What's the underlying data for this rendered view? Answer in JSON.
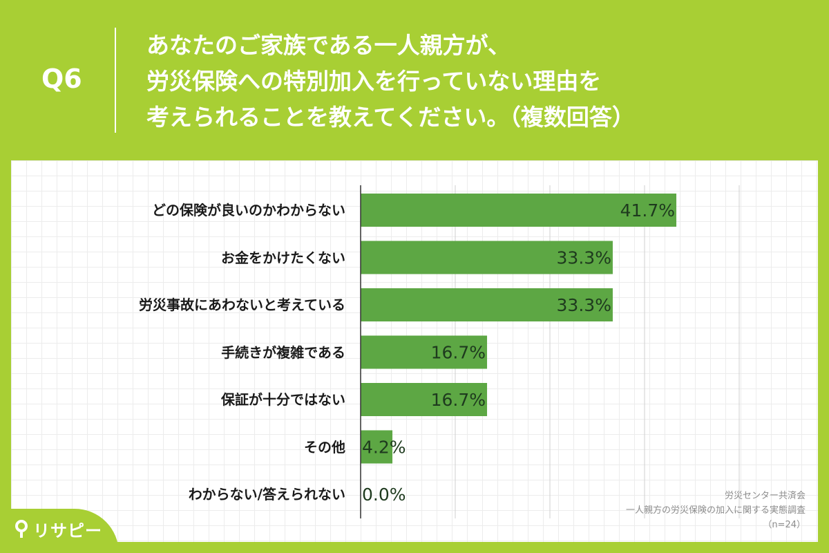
{
  "question": {
    "label": "Q6",
    "lines": [
      "あなたのご家族である一人親方が、",
      "労災保険への特別加入を行っていない理由を",
      "考えられることを教えてください。（複数回答）"
    ]
  },
  "source": {
    "org": "労災センター共済会",
    "survey": "一人親方の労災保険の加入に関する実態調査",
    "sample": "（n=24）"
  },
  "logo": {
    "text": "リサピー"
  },
  "colors": {
    "background": "#a8cf34",
    "bar": "#5da744",
    "value_text": "#1e3a1e"
  },
  "chart_data": {
    "type": "bar",
    "orientation": "horizontal",
    "categories": [
      "どの保険が良いのかわからない",
      "お金をかけたくない",
      "労災事故にあわないと考えている",
      "手続きが複雑である",
      "保証が十分ではない",
      "その他",
      "わからない/答えられない"
    ],
    "values": [
      41.7,
      33.3,
      33.3,
      16.7,
      16.7,
      4.2,
      0.0
    ],
    "value_labels": [
      "41.7%",
      "33.3%",
      "33.3%",
      "16.7%",
      "16.7%",
      "4.2%",
      "0.0%"
    ],
    "unit": "%",
    "xlim": [
      0,
      50
    ],
    "x_gridlines": [
      0,
      12.5,
      25,
      37.5,
      50
    ],
    "grid": true,
    "legend": "none"
  }
}
